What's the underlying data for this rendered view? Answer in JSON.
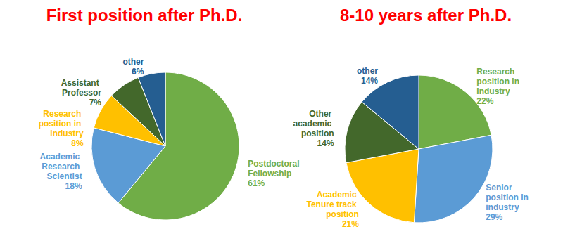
{
  "chart_data": [
    {
      "type": "pie",
      "title": "First position after Ph.D.",
      "categories": [
        "Postdoctoral Fellowship",
        "Academic Research Scientist",
        "Research position in Industry",
        "Assistant Professor",
        "other"
      ],
      "values": [
        61,
        18,
        8,
        7,
        6
      ],
      "value_labels": [
        "61%",
        "18%",
        "8%",
        "7%",
        "6%"
      ],
      "colors": [
        "#70ad47",
        "#5b9bd5",
        "#ffc000",
        "#43682b",
        "#255e91"
      ],
      "data_labels": true
    },
    {
      "type": "pie",
      "title": "8-10 years after Ph.D.",
      "categories": [
        "Research position in Industry",
        "Senior position in industry",
        "Academic Tenure track position",
        "Other academic position",
        "other"
      ],
      "values": [
        22,
        29,
        21,
        14,
        14
      ],
      "value_labels": [
        "22%",
        "29%",
        "21%",
        "14%",
        "14%"
      ],
      "colors": [
        "#70ad47",
        "#5b9bd5",
        "#ffc000",
        "#43682b",
        "#255e91"
      ],
      "data_labels": true
    }
  ]
}
